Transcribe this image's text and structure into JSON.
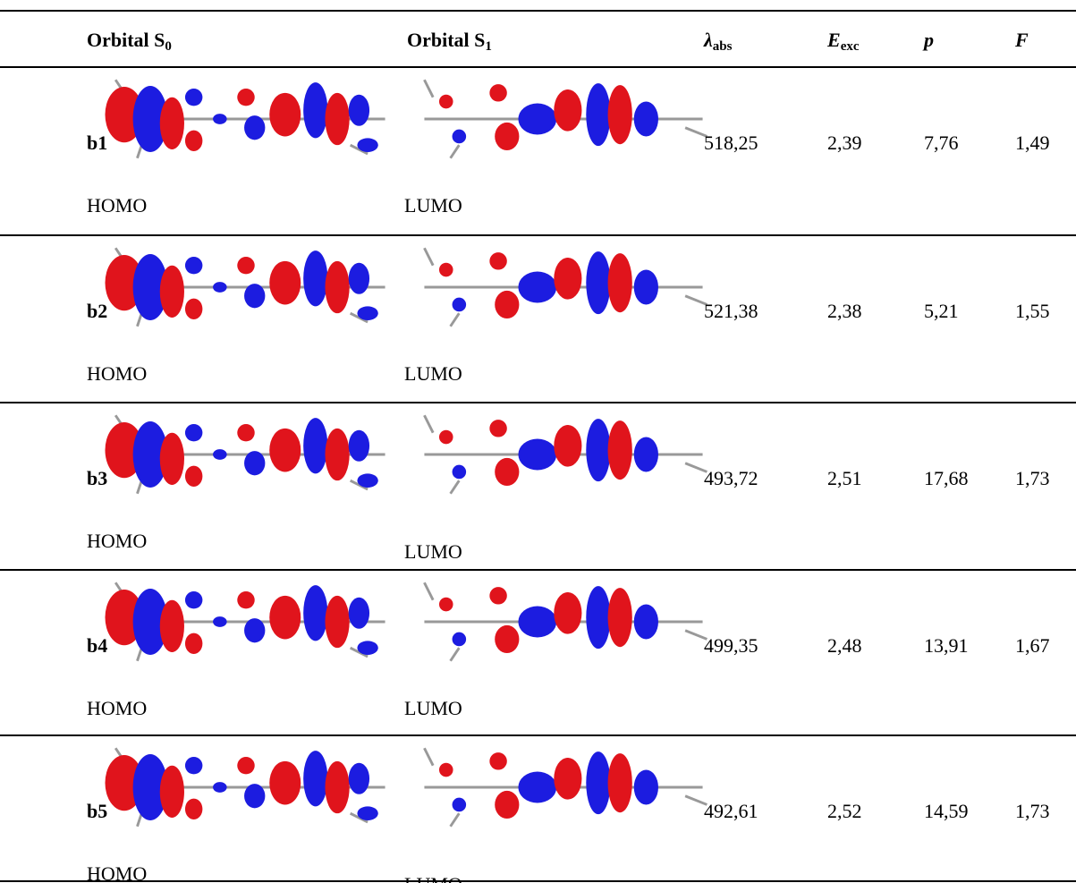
{
  "header": {
    "columns": [
      {
        "text": "Orbital S",
        "sub": "0"
      },
      {
        "text": "Orbital S",
        "sub": "1"
      },
      {
        "text": "λ",
        "sub": "abs"
      },
      {
        "text": "E",
        "sub": "exc"
      },
      {
        "text": "p"
      },
      {
        "text": "F"
      }
    ]
  },
  "rows": [
    {
      "label": "b1",
      "orbital_s0": "HOMO",
      "orbital_s1": "LUMO",
      "lambda_abs": "518,25",
      "e_exc": "2,39",
      "p": "7,76",
      "f": "1,49"
    },
    {
      "label": "b2",
      "orbital_s0": "HOMO",
      "orbital_s1": "LUMO",
      "lambda_abs": "521,38",
      "e_exc": "2,38",
      "p": "5,21",
      "f": "1,55"
    },
    {
      "label": "b3",
      "orbital_s0": "HOMO",
      "orbital_s1": "LUMO",
      "lambda_abs": "493,72",
      "e_exc": "2,51",
      "p": "17,68",
      "f": "1,73"
    },
    {
      "label": "b4",
      "orbital_s0": "HOMO",
      "orbital_s1": "LUMO",
      "lambda_abs": "499,35",
      "e_exc": "2,48",
      "p": "13,91",
      "f": "1,67"
    },
    {
      "label": "b5",
      "orbital_s0": "HOMO",
      "orbital_s1": "LUMO",
      "lambda_abs": "492,61",
      "e_exc": "2,52",
      "p": "14,59",
      "f": "1,73"
    }
  ]
}
